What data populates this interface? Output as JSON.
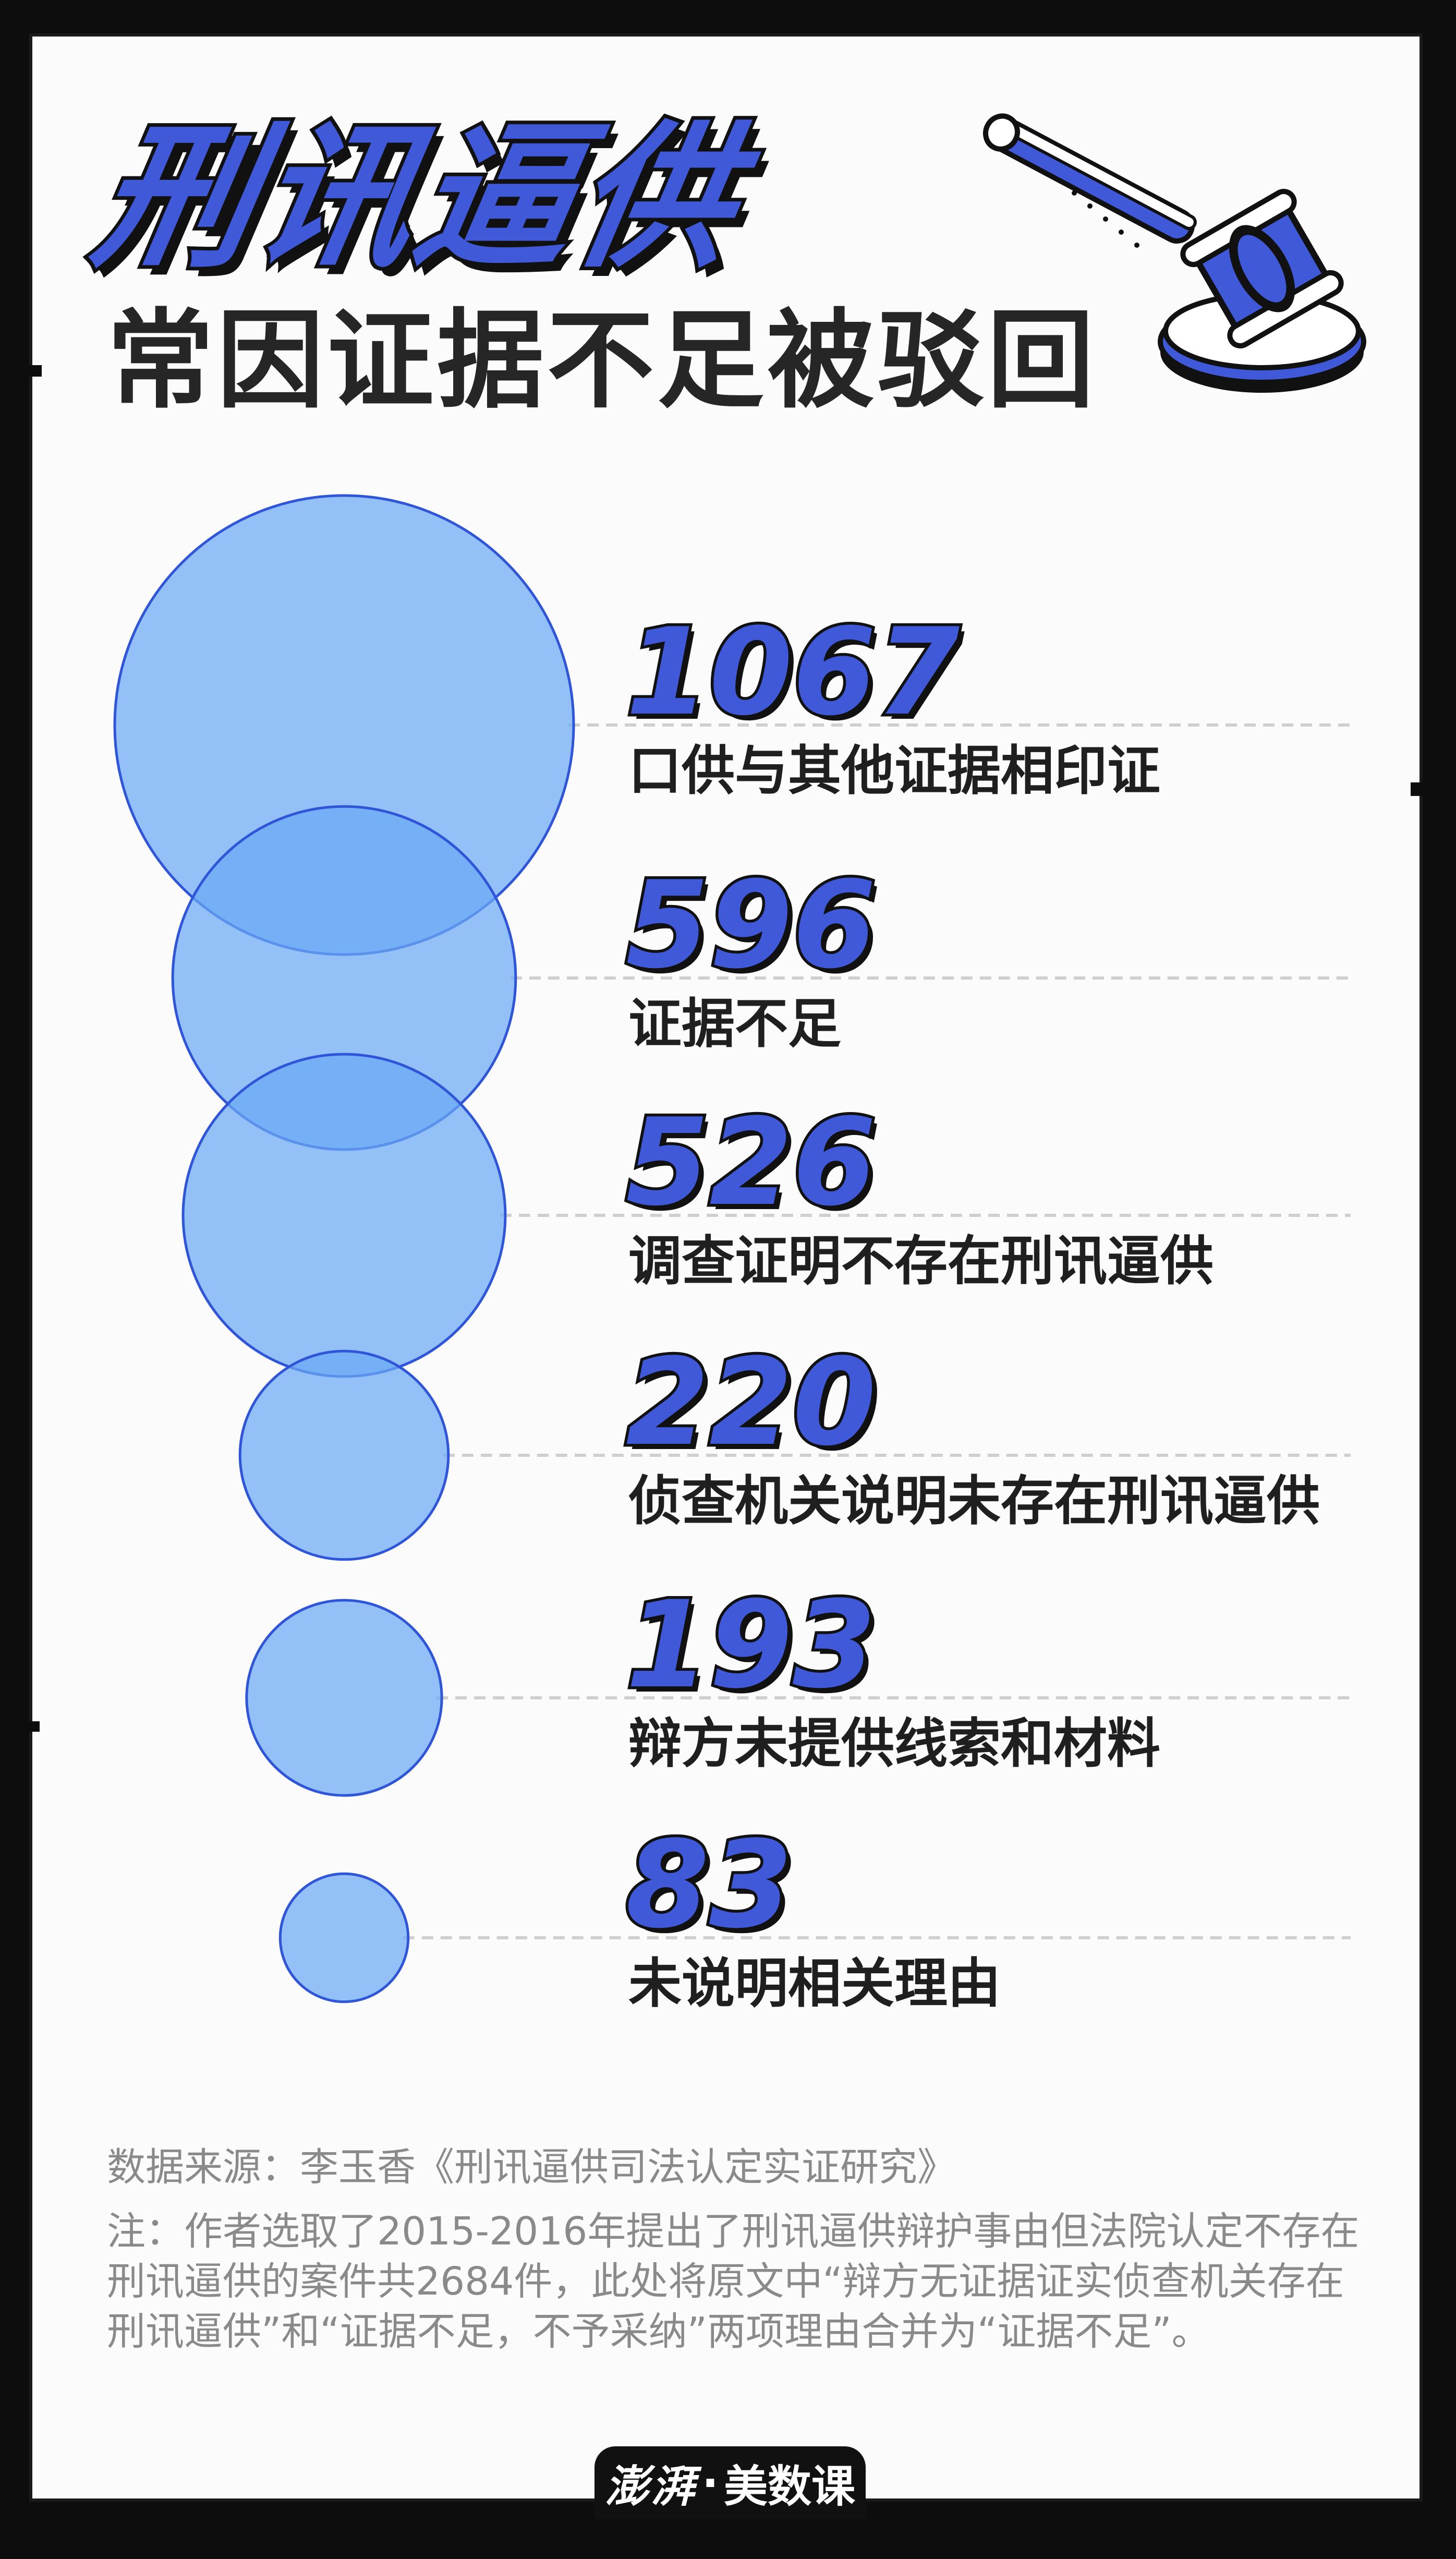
{
  "header": {
    "title": "刑讯逼供",
    "subtitle": "常因证据不足被驳回"
  },
  "chart_data": {
    "type": "bubble",
    "categories": [
      "口供与其他证据相印证",
      "证据不足",
      "调查证明不存在刑讯逼供",
      "侦查机关说明未存在刑讯逼供",
      "辩方未提供线索和材料",
      "未说明相关理由"
    ],
    "values": [
      1067,
      596,
      526,
      220,
      193,
      83
    ],
    "value_labels": [
      "1067",
      "596",
      "526",
      "220",
      "193",
      "83"
    ]
  },
  "colors": {
    "bubble_fill": "#6aa9f5",
    "bubble_stroke": "#2f55d8",
    "number_fill": "#3f59d8",
    "leader_line": "#cfcfcf"
  },
  "footer": {
    "source": "数据来源：李玉香《刑讯逼供司法认定实证研究》",
    "note": "注：作者选取了2015-2016年提出了刑讯逼供辩护事由但法院认定不存在刑讯逼供的案件共2684件，此处将原文中“辩方无证据证实侦查机关存在刑讯逼供”和“证据不足，不予采纳”两项理由合并为“证据不足”。",
    "brand_primary": "澎湃",
    "brand_separator": "·",
    "brand_secondary": "美数课"
  }
}
